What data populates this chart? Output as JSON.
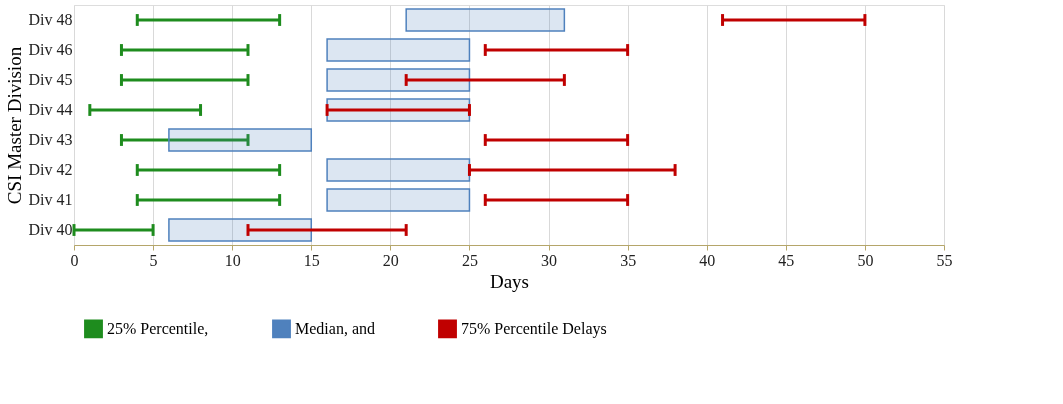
{
  "chart_data": {
    "type": "bar",
    "orientation": "horizontal",
    "xlabel": "Days",
    "ylabel": "CSI Master Division",
    "categories": [
      "Div 48",
      "Div 46",
      "Div 45",
      "Div 44",
      "Div 43",
      "Div 42",
      "Div 41",
      "Div 40"
    ],
    "series": [
      {
        "name": "25% Percentile,",
        "color": "#1e8c1e",
        "type": "bar",
        "base": [
          4,
          3,
          3,
          1,
          3,
          4,
          4,
          0
        ],
        "values": [
          9,
          8,
          8,
          7,
          8,
          9,
          9,
          5
        ]
      },
      {
        "name": "Median, and",
        "color": "#4f81bd",
        "type": "bar",
        "base": [
          21,
          16,
          16,
          16,
          6,
          16,
          16,
          6
        ],
        "values": [
          10,
          9,
          9,
          9,
          9,
          9,
          9,
          9
        ]
      },
      {
        "name": "75% Percentile Delays",
        "color": "#c00000",
        "type": "bar",
        "base": [
          41,
          26,
          21,
          16,
          26,
          25,
          26,
          11
        ],
        "values": [
          9,
          9,
          10,
          9,
          9,
          13,
          9,
          10
        ]
      }
    ],
    "xlim": [
      0,
      55
    ],
    "xticks": [
      0,
      5,
      10,
      15,
      20,
      25,
      30,
      35,
      40,
      45,
      50,
      55
    ],
    "grid": "x",
    "legend": "bottom"
  }
}
